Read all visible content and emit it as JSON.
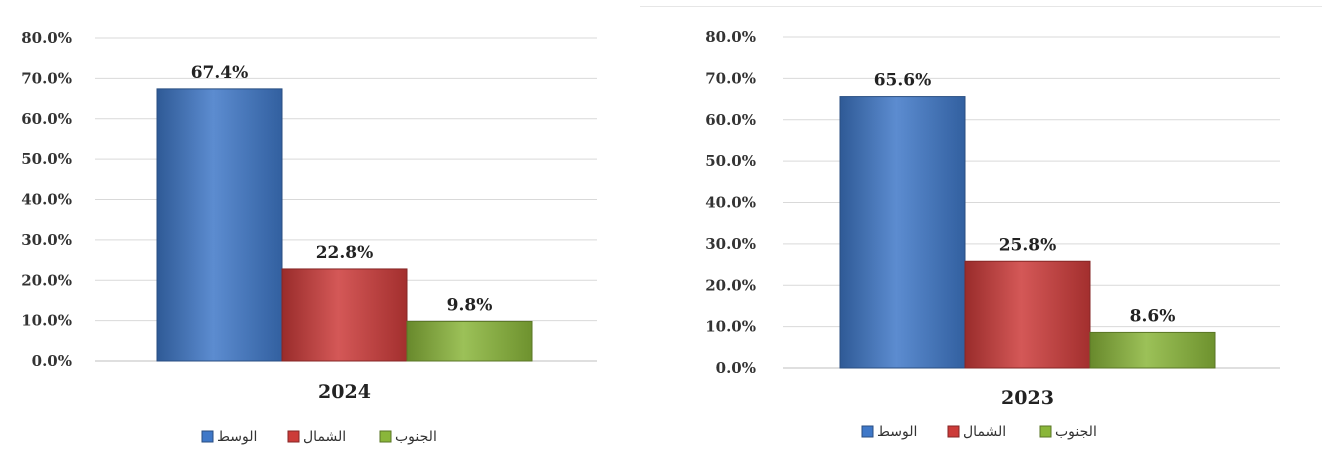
{
  "chart_data": [
    {
      "type": "bar",
      "categories": [
        "2024"
      ],
      "series": [
        {
          "name": "الوسط",
          "values": [
            67.4
          ],
          "color": "#3f78c8"
        },
        {
          "name": "الشمال",
          "values": [
            22.8
          ],
          "color": "#cc3b39"
        },
        {
          "name": "الجنوب",
          "values": [
            9.8
          ],
          "color": "#8ab63a"
        }
      ],
      "data_labels": [
        "67.4%",
        "22.8%",
        "9.8%"
      ],
      "y_ticks": [
        "0.0%",
        "10.0%",
        "20.0%",
        "30.0%",
        "40.0%",
        "50.0%",
        "60.0%",
        "70.0%",
        "80.0%"
      ],
      "ylim": [
        0,
        80
      ],
      "grid": true,
      "legend_position": "bottom"
    },
    {
      "type": "bar",
      "categories": [
        "2023"
      ],
      "series": [
        {
          "name": "الوسط",
          "values": [
            65.6
          ],
          "color": "#3f78c8"
        },
        {
          "name": "الشمال",
          "values": [
            25.8
          ],
          "color": "#cc3b39"
        },
        {
          "name": "الجنوب",
          "values": [
            8.6
          ],
          "color": "#8ab63a"
        }
      ],
      "data_labels": [
        "65.6%",
        "25.8%",
        "8.6%"
      ],
      "y_ticks": [
        "0.0%",
        "10.0%",
        "20.0%",
        "30.0%",
        "40.0%",
        "50.0%",
        "60.0%",
        "70.0%",
        "80.0%"
      ],
      "ylim": [
        0,
        80
      ],
      "grid": true,
      "legend_position": "bottom"
    }
  ]
}
